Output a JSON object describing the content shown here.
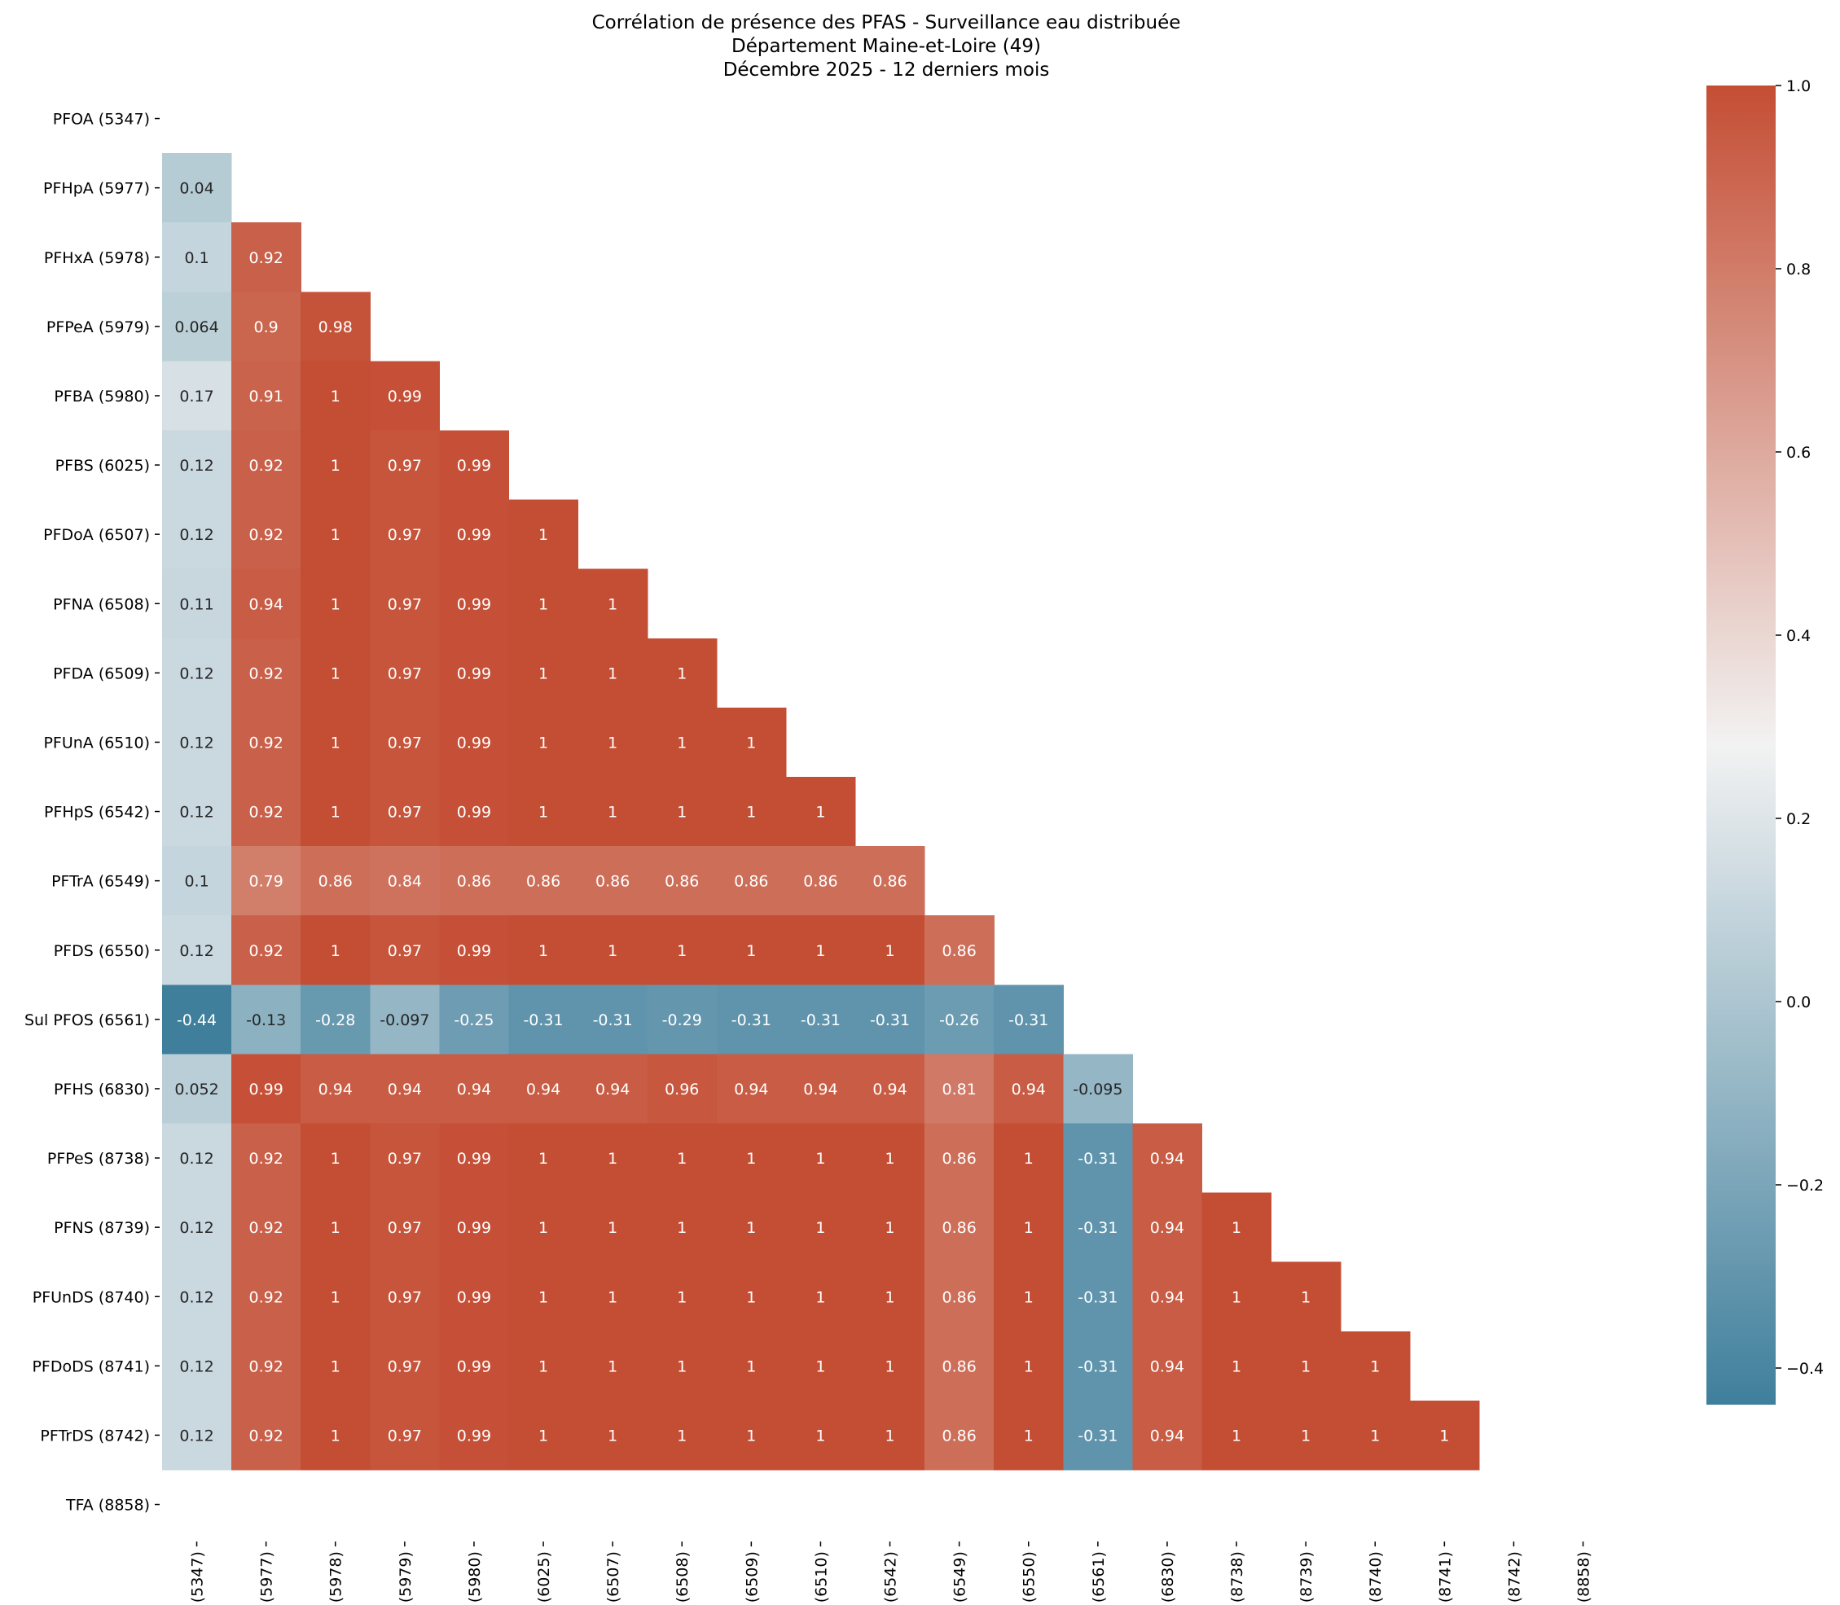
{
  "chart_data": {
    "type": "heatmap",
    "title_lines": [
      "Corrélation de présence des PFAS - Surveillance eau distribuée",
      "Département Maine-et-Loire (49)",
      "Décembre 2025 - 12 derniers mois"
    ],
    "labels": [
      "PFOA (5347)",
      "PFHpA (5977)",
      "PFHxA (5978)",
      "PFPeA (5979)",
      "PFBA (5980)",
      "PFBS (6025)",
      "PFDoA (6507)",
      "PFNA (6508)",
      "PFDA (6509)",
      "PFUnA (6510)",
      "PFHpS (6542)",
      "PFTrA (6549)",
      "PFDS (6550)",
      "Sul PFOS (6561)",
      "PFHS (6830)",
      "PFPeS (8738)",
      "PFNS (8739)",
      "PFUnDS (8740)",
      "PFDoDS (8741)",
      "PFTrDS (8742)",
      "TFA (8858)"
    ],
    "lower_triangle": [
      [],
      [
        0.04
      ],
      [
        0.1,
        0.92
      ],
      [
        0.064,
        0.9,
        0.98
      ],
      [
        0.17,
        0.91,
        1,
        0.99
      ],
      [
        0.12,
        0.92,
        1,
        0.97,
        0.99
      ],
      [
        0.12,
        0.92,
        1,
        0.97,
        0.99,
        1
      ],
      [
        0.11,
        0.94,
        1,
        0.97,
        0.99,
        1,
        1
      ],
      [
        0.12,
        0.92,
        1,
        0.97,
        0.99,
        1,
        1,
        1
      ],
      [
        0.12,
        0.92,
        1,
        0.97,
        0.99,
        1,
        1,
        1,
        1
      ],
      [
        0.12,
        0.92,
        1,
        0.97,
        0.99,
        1,
        1,
        1,
        1,
        1
      ],
      [
        0.1,
        0.79,
        0.86,
        0.84,
        0.86,
        0.86,
        0.86,
        0.86,
        0.86,
        0.86,
        0.86
      ],
      [
        0.12,
        0.92,
        1,
        0.97,
        0.99,
        1,
        1,
        1,
        1,
        1,
        1,
        0.86
      ],
      [
        -0.44,
        -0.13,
        -0.28,
        -0.097,
        -0.25,
        -0.31,
        -0.31,
        -0.29,
        -0.31,
        -0.31,
        -0.31,
        -0.26,
        -0.31
      ],
      [
        0.052,
        0.99,
        0.94,
        0.94,
        0.94,
        0.94,
        0.94,
        0.96,
        0.94,
        0.94,
        0.94,
        0.81,
        0.94,
        -0.095
      ],
      [
        0.12,
        0.92,
        1,
        0.97,
        0.99,
        1,
        1,
        1,
        1,
        1,
        1,
        0.86,
        1,
        -0.31,
        0.94
      ],
      [
        0.12,
        0.92,
        1,
        0.97,
        0.99,
        1,
        1,
        1,
        1,
        1,
        1,
        0.86,
        1,
        -0.31,
        0.94,
        1
      ],
      [
        0.12,
        0.92,
        1,
        0.97,
        0.99,
        1,
        1,
        1,
        1,
        1,
        1,
        0.86,
        1,
        -0.31,
        0.94,
        1,
        1
      ],
      [
        0.12,
        0.92,
        1,
        0.97,
        0.99,
        1,
        1,
        1,
        1,
        1,
        1,
        0.86,
        1,
        -0.31,
        0.94,
        1,
        1,
        1
      ],
      [
        0.12,
        0.92,
        1,
        0.97,
        0.99,
        1,
        1,
        1,
        1,
        1,
        1,
        0.86,
        1,
        -0.31,
        0.94,
        1,
        1,
        1,
        1
      ],
      []
    ],
    "value_labels": [
      [],
      [
        "0.04"
      ],
      [
        "0.1",
        "0.92"
      ],
      [
        "0.064",
        "0.9",
        "0.98"
      ],
      [
        "0.17",
        "0.91",
        "1",
        "0.99"
      ],
      [
        "0.12",
        "0.92",
        "1",
        "0.97",
        "0.99"
      ],
      [
        "0.12",
        "0.92",
        "1",
        "0.97",
        "0.99",
        "1"
      ],
      [
        "0.11",
        "0.94",
        "1",
        "0.97",
        "0.99",
        "1",
        "1"
      ],
      [
        "0.12",
        "0.92",
        "1",
        "0.97",
        "0.99",
        "1",
        "1",
        "1"
      ],
      [
        "0.12",
        "0.92",
        "1",
        "0.97",
        "0.99",
        "1",
        "1",
        "1",
        "1"
      ],
      [
        "0.12",
        "0.92",
        "1",
        "0.97",
        "0.99",
        "1",
        "1",
        "1",
        "1",
        "1"
      ],
      [
        "0.1",
        "0.79",
        "0.86",
        "0.84",
        "0.86",
        "0.86",
        "0.86",
        "0.86",
        "0.86",
        "0.86",
        "0.86"
      ],
      [
        "0.12",
        "0.92",
        "1",
        "0.97",
        "0.99",
        "1",
        "1",
        "1",
        "1",
        "1",
        "1",
        "0.86"
      ],
      [
        "-0.44",
        "-0.13",
        "-0.28",
        "-0.097",
        "-0.25",
        "-0.31",
        "-0.31",
        "-0.29",
        "-0.31",
        "-0.31",
        "-0.31",
        "-0.26",
        "-0.31"
      ],
      [
        "0.052",
        "0.99",
        "0.94",
        "0.94",
        "0.94",
        "0.94",
        "0.94",
        "0.96",
        "0.94",
        "0.94",
        "0.94",
        "0.81",
        "0.94",
        "-0.095"
      ],
      [
        "0.12",
        "0.92",
        "1",
        "0.97",
        "0.99",
        "1",
        "1",
        "1",
        "1",
        "1",
        "1",
        "0.86",
        "1",
        "-0.31",
        "0.94"
      ],
      [
        "0.12",
        "0.92",
        "1",
        "0.97",
        "0.99",
        "1",
        "1",
        "1",
        "1",
        "1",
        "1",
        "0.86",
        "1",
        "-0.31",
        "0.94",
        "1"
      ],
      [
        "0.12",
        "0.92",
        "1",
        "0.97",
        "0.99",
        "1",
        "1",
        "1",
        "1",
        "1",
        "1",
        "0.86",
        "1",
        "-0.31",
        "0.94",
        "1",
        "1"
      ],
      [
        "0.12",
        "0.92",
        "1",
        "0.97",
        "0.99",
        "1",
        "1",
        "1",
        "1",
        "1",
        "1",
        "0.86",
        "1",
        "-0.31",
        "0.94",
        "1",
        "1",
        "1"
      ],
      [
        "0.12",
        "0.92",
        "1",
        "0.97",
        "0.99",
        "1",
        "1",
        "1",
        "1",
        "1",
        "1",
        "0.86",
        "1",
        "-0.31",
        "0.94",
        "1",
        "1",
        "1",
        "1"
      ],
      []
    ],
    "mask": "upper triangle and diagonal hidden",
    "colorbar": {
      "vmin": -0.44,
      "vmax": 1.0,
      "center": 0.28,
      "ticks": [
        -0.4,
        -0.2,
        0.0,
        0.2,
        0.4,
        0.6,
        0.8,
        1.0
      ],
      "tick_labels": [
        "−0.4",
        "−0.2",
        "0.0",
        "0.2",
        "0.4",
        "0.6",
        "0.8",
        "1.0"
      ],
      "low_color": "#3f7f9c",
      "mid_color": "#f2f2f2",
      "high_color": "#c44e34"
    },
    "xlabel": "",
    "ylabel": ""
  }
}
